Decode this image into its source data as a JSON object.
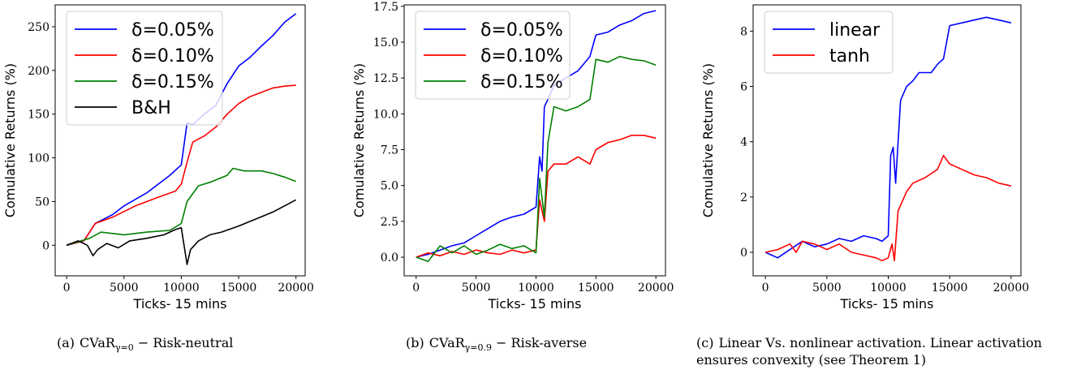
{
  "axis_common": {
    "xlabel": "Ticks- 15 mins",
    "ylabel": "Comulative Returns (%)"
  },
  "captions": [
    {
      "label": "(a)",
      "name": "CVaR",
      "sub": "γ=0",
      "text": "− Risk-neutral"
    },
    {
      "label": "(b)",
      "name": "CVaR",
      "sub": "γ=0.9",
      "text": "− Risk-averse"
    },
    {
      "label": "(c)",
      "name": "",
      "sub": "",
      "text": "Linear Vs. nonlinear activation. Linear activation ensures convexity (see Theorem 1)"
    }
  ],
  "chart_data": [
    {
      "type": "line",
      "xlabel": "Ticks- 15 mins",
      "ylabel": "Comulative Returns (%)",
      "xlim": [
        -1000,
        20800
      ],
      "ylim": [
        -35,
        275
      ],
      "xticks": [
        0,
        5000,
        10000,
        15000,
        20000
      ],
      "yticks": [
        0,
        50,
        100,
        150,
        200,
        250
      ],
      "legend_position": "top-left",
      "series": [
        {
          "name": "δ=0.05%",
          "color": "#0000ff",
          "x": [
            0,
            1500,
            2500,
            4000,
            5000,
            7000,
            9000,
            10000,
            10500,
            11000,
            12000,
            13000,
            14000,
            15000,
            16000,
            17000,
            18000,
            19000,
            20000
          ],
          "y": [
            0,
            5,
            25,
            35,
            45,
            60,
            80,
            92,
            140,
            138,
            150,
            160,
            185,
            205,
            215,
            228,
            240,
            255,
            265
          ]
        },
        {
          "name": "δ=0.10%",
          "color": "#ff0000",
          "x": [
            0,
            1500,
            2500,
            4000,
            6000,
            8000,
            9500,
            10000,
            10500,
            11000,
            12000,
            13000,
            14000,
            15000,
            16000,
            17000,
            18000,
            19000,
            20000
          ],
          "y": [
            0,
            5,
            25,
            32,
            45,
            55,
            62,
            70,
            95,
            118,
            125,
            135,
            150,
            162,
            170,
            175,
            180,
            182,
            183
          ]
        },
        {
          "name": "δ=0.15%",
          "color": "#008000",
          "x": [
            0,
            2000,
            3000,
            5000,
            7000,
            9000,
            10000,
            10500,
            11500,
            12500,
            14000,
            14500,
            15500,
            17000,
            18000,
            19000,
            20000
          ],
          "y": [
            0,
            8,
            15,
            12,
            15,
            17,
            25,
            50,
            68,
            72,
            80,
            88,
            85,
            85,
            82,
            78,
            73
          ]
        },
        {
          "name": "B&H",
          "color": "#000000",
          "x": [
            0,
            1000,
            1800,
            2300,
            2700,
            3500,
            4500,
            5500,
            7000,
            8500,
            9500,
            10000,
            10500,
            10800,
            11500,
            12500,
            13500,
            15000,
            16500,
            18000,
            19000,
            20000
          ],
          "y": [
            0,
            5,
            0,
            -12,
            -5,
            2,
            -3,
            5,
            8,
            12,
            18,
            20,
            -22,
            -5,
            5,
            12,
            15,
            22,
            30,
            38,
            45,
            52
          ]
        }
      ]
    },
    {
      "type": "line",
      "xlabel": "Ticks- 15 mins",
      "ylabel": "Comulative Returns (%)",
      "xlim": [
        -1000,
        20800
      ],
      "ylim": [
        -1.3,
        17.6
      ],
      "xticks": [
        0,
        5000,
        10000,
        15000,
        20000
      ],
      "yticks": [
        0.0,
        2.5,
        5.0,
        7.5,
        10.0,
        12.5,
        15.0,
        17.5
      ],
      "legend_position": "top-left",
      "series": [
        {
          "name": "δ=0.05%",
          "color": "#0000ff",
          "x": [
            0,
            1000,
            2000,
            3000,
            4000,
            5000,
            6000,
            7000,
            8000,
            9000,
            10000,
            10300,
            10500,
            10700,
            11000,
            11500,
            12500,
            13500,
            14500,
            15000,
            16000,
            17000,
            18000,
            19000,
            20000
          ],
          "y": [
            0,
            0.2,
            0.5,
            0.8,
            1.0,
            1.5,
            2.0,
            2.5,
            2.8,
            3.0,
            3.5,
            7.0,
            6.0,
            10.5,
            11.0,
            12.0,
            12.5,
            13.0,
            14.0,
            15.5,
            15.7,
            16.2,
            16.5,
            17.0,
            17.2
          ]
        },
        {
          "name": "δ=0.10%",
          "color": "#ff0000",
          "x": [
            0,
            1000,
            2000,
            3000,
            4000,
            5000,
            6000,
            7000,
            8000,
            9000,
            10000,
            10300,
            10700,
            11000,
            11500,
            12500,
            13500,
            14500,
            15000,
            16000,
            17000,
            18000,
            19000,
            20000
          ],
          "y": [
            0,
            0.3,
            0.1,
            0.4,
            0.2,
            0.5,
            0.3,
            0.2,
            0.5,
            0.3,
            0.5,
            4.0,
            2.5,
            6.0,
            6.5,
            6.5,
            7.0,
            6.5,
            7.5,
            8.0,
            8.2,
            8.5,
            8.5,
            8.3
          ]
        },
        {
          "name": "δ=0.15%",
          "color": "#008000",
          "x": [
            0,
            1000,
            2000,
            3000,
            4000,
            5000,
            6000,
            7000,
            8000,
            9000,
            10000,
            10300,
            10700,
            11000,
            11500,
            12500,
            13500,
            14500,
            15000,
            16000,
            17000,
            18000,
            19000,
            20000
          ],
          "y": [
            0,
            -0.3,
            0.8,
            0.3,
            0.8,
            0.2,
            0.5,
            0.9,
            0.6,
            0.8,
            0.3,
            5.5,
            2.8,
            8.0,
            10.5,
            10.2,
            10.5,
            11.0,
            13.8,
            13.6,
            14.0,
            13.8,
            13.7,
            13.4
          ]
        }
      ]
    },
    {
      "type": "line",
      "xlabel": "Ticks- 15 mins",
      "ylabel": "Comulative Returns (%)",
      "xlim": [
        -1000,
        20800
      ],
      "ylim": [
        -0.85,
        8.95
      ],
      "xticks": [
        0,
        5000,
        10000,
        15000,
        20000
      ],
      "yticks": [
        0,
        2,
        4,
        6,
        8
      ],
      "legend_position": "top-left",
      "series": [
        {
          "name": "linear",
          "color": "#0000ff",
          "x": [
            0,
            1000,
            2000,
            3000,
            4000,
            5000,
            6000,
            7000,
            8000,
            9000,
            9500,
            10000,
            10200,
            10400,
            10600,
            11000,
            11500,
            12000,
            12500,
            13500,
            14000,
            14500,
            15000,
            16000,
            17000,
            18000,
            19000,
            20000
          ],
          "y": [
            0,
            -0.2,
            0.1,
            0.4,
            0.2,
            0.3,
            0.5,
            0.4,
            0.6,
            0.5,
            0.4,
            0.6,
            3.5,
            3.8,
            2.5,
            5.5,
            6.0,
            6.2,
            6.5,
            6.5,
            6.8,
            7.0,
            8.2,
            8.3,
            8.4,
            8.5,
            8.4,
            8.3
          ]
        },
        {
          "name": "tanh",
          "color": "#ff0000",
          "x": [
            0,
            1000,
            2000,
            2500,
            3000,
            4000,
            5000,
            6000,
            7000,
            8000,
            9000,
            9500,
            10000,
            10300,
            10500,
            10800,
            11500,
            12000,
            13000,
            14000,
            14500,
            15000,
            16000,
            17000,
            18000,
            19000,
            20000
          ],
          "y": [
            0,
            0.1,
            0.3,
            0.0,
            0.4,
            0.3,
            0.1,
            0.3,
            0.0,
            -0.1,
            -0.2,
            -0.3,
            -0.2,
            0.3,
            -0.3,
            1.5,
            2.2,
            2.5,
            2.7,
            3.0,
            3.5,
            3.2,
            3.0,
            2.8,
            2.7,
            2.5,
            2.4
          ]
        }
      ]
    }
  ]
}
